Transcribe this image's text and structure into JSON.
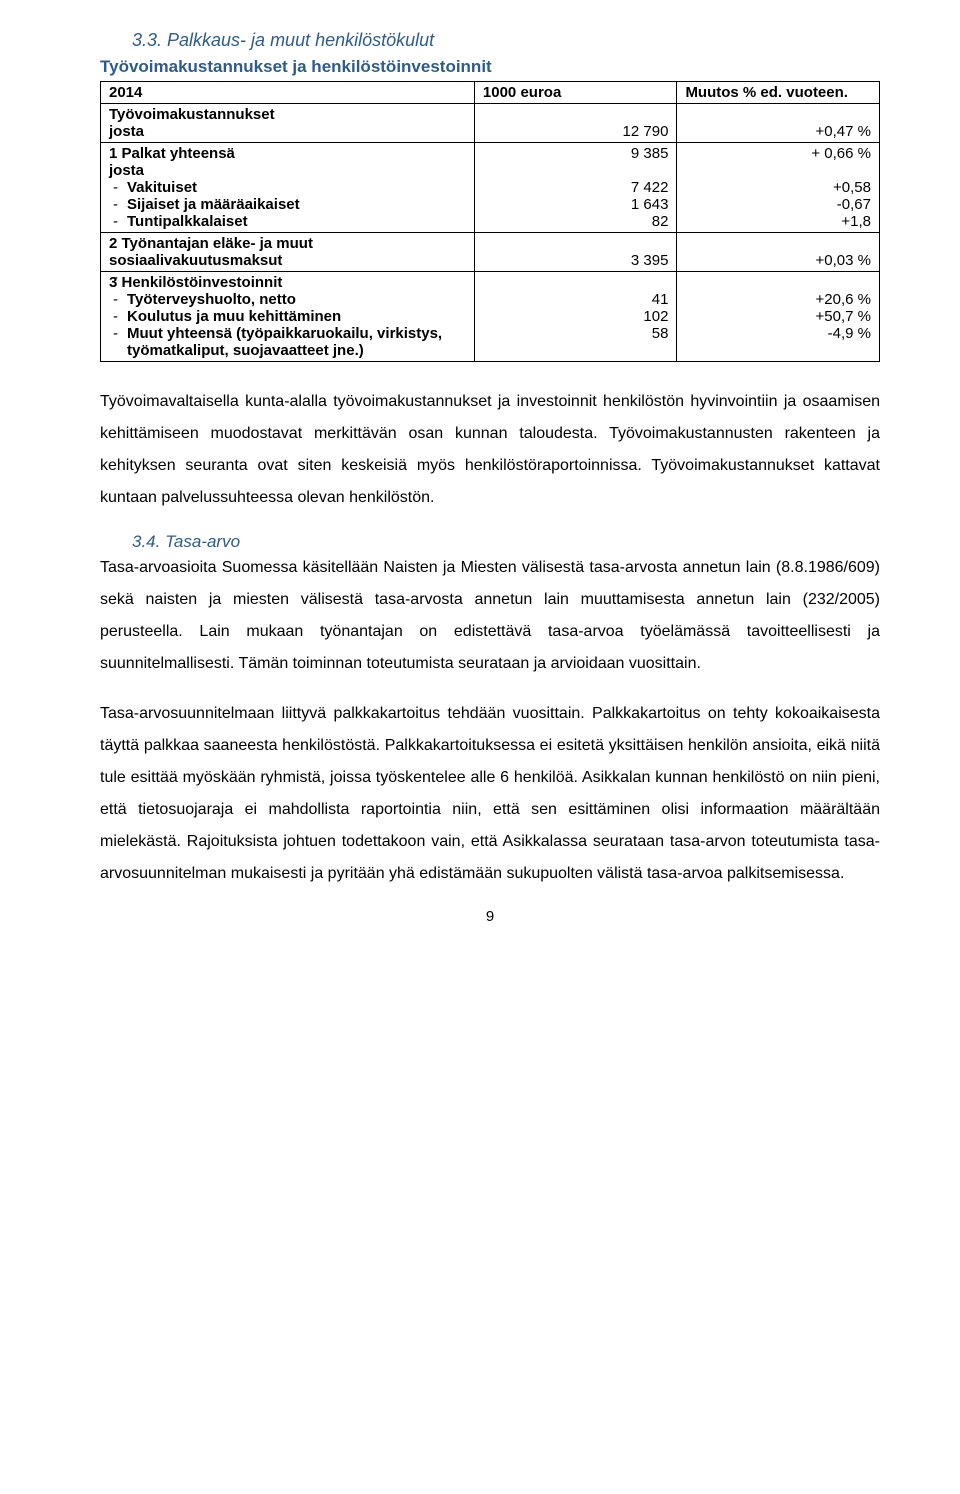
{
  "section33": {
    "heading": "3.3.   Palkkaus- ja muut henkilöstökulut",
    "tableTitle": "Työvoimakustannukset ja henkilöstöinvestoinnit",
    "table": {
      "headers": {
        "col1": "2014",
        "col2": "1000 euroa",
        "col3": "Muutos % ed. vuoteen."
      },
      "rows": {
        "tvk": {
          "label": "Työvoimakustannukset",
          "sublabel": "josta",
          "val": "12 790",
          "chg": "+0,47 %"
        },
        "palkat": {
          "label": "1 Palkat yhteensä",
          "sublabel": "josta",
          "subitems": {
            "a": {
              "label": "Vakituiset",
              "val": "7 422",
              "chg": "+0,58"
            },
            "b": {
              "label": "Sijaiset ja määräaikaiset",
              "val": "1 643",
              "chg": "-0,67"
            },
            "c": {
              "label": "Tuntipalkkalaiset",
              "val": "82",
              "chg": "+1,8"
            }
          },
          "val": "9 385",
          "chg": "+ 0,66 %"
        },
        "tyonantaja": {
          "label": "2 Työnantajan eläke- ja muut sosiaalivakuutusmaksut",
          "dash": "-",
          "val": "3 395",
          "chg": "+0,03 %"
        },
        "hinv": {
          "label": "3 Henkilöstöinvestoinnit",
          "subitems": {
            "a": {
              "label": "Työterveyshuolto, netto",
              "val": "41",
              "chg": "+20,6 %"
            },
            "b": {
              "label": "Koulutus ja muu kehittäminen",
              "val": "102",
              "chg": "+50,7 %"
            },
            "c": {
              "label": "Muut yhteensä (työpaikkaruokailu, virkistys, työmatkaliput, suojavaatteet jne.)",
              "val": "58",
              "chg": "-4,9 %"
            }
          }
        }
      }
    }
  },
  "para1": "Työvoimavaltaisella kunta-alalla työvoimakustannukset ja investoinnit henkilöstön hyvinvointiin ja osaamisen kehittämiseen muodostavat merkittävän osan kunnan taloudesta. Työvoimakustannusten rakenteen ja kehityksen seuranta ovat siten keskeisiä myös henkilöstöraportoinnissa. Työvoimakustannukset kattavat kuntaan palvelussuhteessa olevan henkilöstön.",
  "section34": {
    "heading": "3.4.   Tasa-arvo",
    "para2": "Tasa-arvoasioita Suomessa käsitellään Naisten ja Miesten välisestä tasa-arvosta annetun lain (8.8.1986/609) sekä naisten ja miesten välisestä tasa-arvosta annetun lain muuttamisesta annetun lain (232/2005) perusteella. Lain mukaan työnantajan on edistettävä tasa-arvoa työelämässä tavoitteellisesti ja suunnitelmallisesti. Tämän toiminnan toteutumista seurataan ja arvioidaan vuosittain.",
    "para3": "Tasa-arvosuunnitelmaan liittyvä palkkakartoitus tehdään vuosittain. Palkkakartoitus on tehty kokoaikaisesta täyttä palkkaa saaneesta henkilöstöstä. Palkkakartoituksessa ei esitetä yksittäisen henkilön ansioita, eikä niitä tule esittää myöskään ryhmistä, joissa työskentelee alle 6 henkilöä. Asikkalan kunnan henkilöstö on niin pieni, että tietosuojaraja ei mahdollista raportointia niin, että sen esittäminen olisi informaation määrältään mielekästä. Rajoituksista johtuen todettakoon vain, että Asikkalassa seurataan tasa-arvon toteutumista tasa-arvosuunnitelman mukaisesti ja pyritään yhä edistämään sukupuolten välistä tasa-arvoa palkitsemisessa."
  },
  "pageNumber": "9"
}
